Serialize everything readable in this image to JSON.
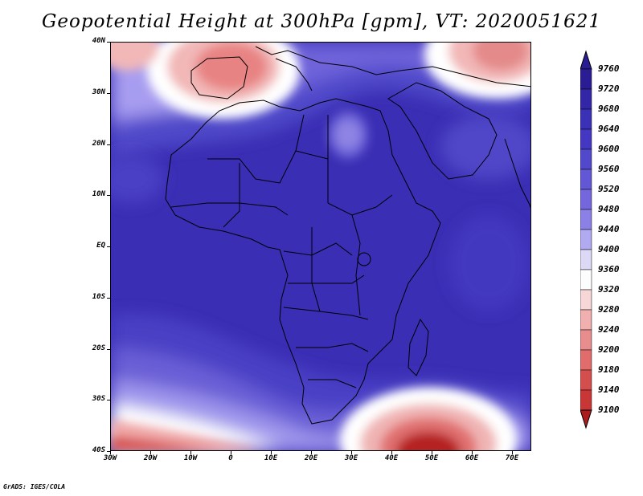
{
  "title": "Geopotential Height at 300hPa [gpm], VT: 2020051621",
  "latitude_labels": [
    "40N",
    "30N",
    "20N",
    "10N",
    "EQ",
    "10S",
    "20S",
    "30S",
    "40S"
  ],
  "longitude_labels": [
    "30W",
    "20W",
    "10W",
    "0",
    "10E",
    "20E",
    "30E",
    "40E",
    "50E",
    "60E",
    "70E"
  ],
  "colorbar": {
    "levels": [
      "9760",
      "9720",
      "9680",
      "9640",
      "9600",
      "9560",
      "9520",
      "9480",
      "9440",
      "9400",
      "9360",
      "9320",
      "9280",
      "9240",
      "9200",
      "9180",
      "9140",
      "9100"
    ],
    "colors": [
      "#2a1d93",
      "#3427a7",
      "#3b31b6",
      "#4438c2",
      "#5148cb",
      "#6257d4",
      "#7467de",
      "#8b80e6",
      "#b1aaf0",
      "#dcd9f7",
      "#fdfdfd",
      "#f6d6d6",
      "#f0b0b0",
      "#e88d8d",
      "#e06c6c",
      "#d54e4e",
      "#c93636",
      "#ab1d1d"
    ]
  },
  "footer": "GrADS: IGES/COLA",
  "colors": {
    "deep_blue": "#3226a8",
    "mid_blue": "#4a40c5",
    "light_blue": "#8b80e6",
    "white": "#ffffff",
    "red": "#d54e4e",
    "dark_red": "#a81b1b"
  }
}
